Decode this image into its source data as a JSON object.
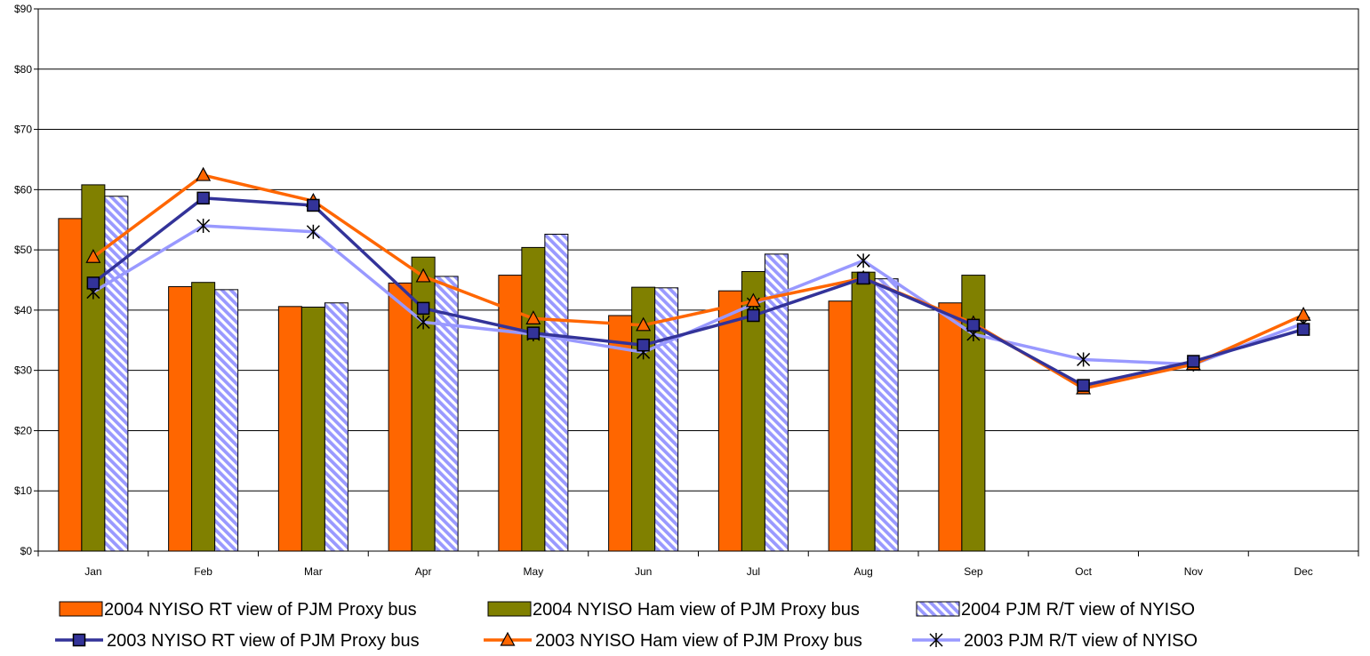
{
  "chart_data": {
    "type": "bar",
    "categories": [
      "Jan",
      "Feb",
      "Mar",
      "Apr",
      "May",
      "Jun",
      "Jul",
      "Aug",
      "Sep",
      "Oct",
      "Nov",
      "Dec"
    ],
    "ylim": [
      0,
      90
    ],
    "yticks": [
      0,
      10,
      20,
      30,
      40,
      50,
      60,
      70,
      80,
      90
    ],
    "ytick_labels": [
      "$0",
      "$10",
      "$20",
      "$30",
      "$40",
      "$50",
      "$60",
      "$70",
      "$80",
      "$90"
    ],
    "grid": "horizontal",
    "legend_placement": "bottom",
    "bar_series": [
      {
        "name": "2004 NYISO RT view of PJM Proxy bus",
        "color": "#ff6600",
        "pattern": "solid",
        "values": [
          55.2,
          43.9,
          40.6,
          44.5,
          45.8,
          39.1,
          43.2,
          41.5,
          41.2,
          null,
          null,
          null
        ]
      },
      {
        "name": "2004 NYISO Ham view of PJM Proxy bus",
        "color": "#808000",
        "pattern": "solid",
        "values": [
          60.8,
          44.6,
          40.5,
          48.8,
          50.4,
          43.8,
          46.4,
          46.3,
          45.8,
          null,
          null,
          null
        ]
      },
      {
        "name": "2004 PJM R/T view of NYISO",
        "color": "#9999ff",
        "pattern": "hatch",
        "values": [
          58.9,
          43.4,
          41.2,
          45.6,
          52.6,
          43.7,
          49.3,
          45.2,
          null,
          null,
          null,
          null
        ]
      }
    ],
    "line_series": [
      {
        "name": "2003 NYISO RT view of PJM Proxy bus",
        "color": "#333399",
        "marker": "square",
        "values": [
          44.5,
          58.6,
          57.4,
          40.3,
          36.2,
          34.2,
          39.1,
          45.3,
          37.5,
          27.5,
          31.5,
          36.8
        ]
      },
      {
        "name": "2003 NYISO Ham view of PJM Proxy bus",
        "color": "#ff6600",
        "marker": "triangle",
        "values": [
          48.8,
          62.4,
          58.1,
          45.6,
          38.6,
          37.5,
          41.5,
          45.3,
          37.8,
          27.0,
          31.0,
          39.2
        ]
      },
      {
        "name": "2003 PJM R/T view of NYISO",
        "color": "#9999ff",
        "marker": "star",
        "values": [
          43.0,
          54.0,
          53.0,
          38.0,
          36.0,
          33.0,
          41.0,
          48.2,
          36.0,
          31.8,
          31.0,
          37.8
        ]
      }
    ]
  }
}
